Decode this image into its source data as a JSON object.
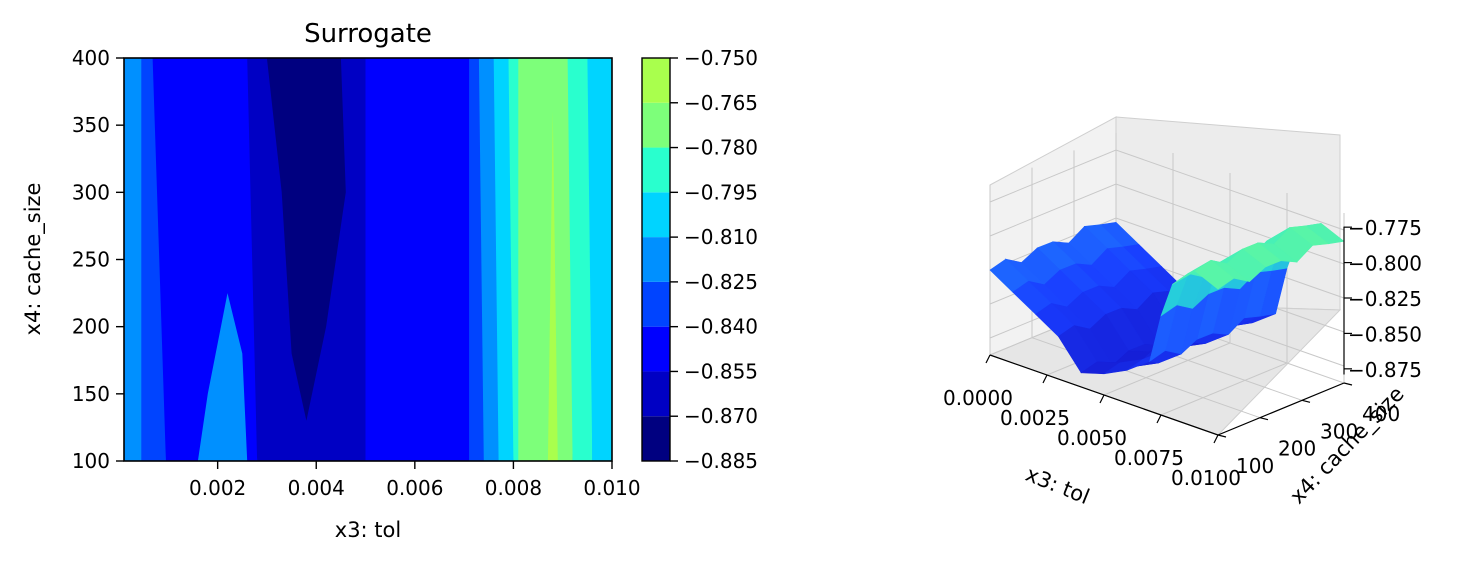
{
  "chart_data": [
    {
      "type": "contour",
      "title": "Surrogate",
      "xlabel": "x3: tol",
      "ylabel": "x4: cache_size",
      "xlim": [
        0.0001,
        0.01
      ],
      "ylim": [
        100,
        400
      ],
      "xticks": [
        "0.002",
        "0.004",
        "0.006",
        "0.008",
        "0.010"
      ],
      "xtick_values": [
        0.002,
        0.004,
        0.006,
        0.008,
        0.01
      ],
      "yticks": [
        "100",
        "150",
        "200",
        "250",
        "300",
        "350",
        "400"
      ],
      "ytick_values": [
        100,
        150,
        200,
        250,
        300,
        350,
        400
      ],
      "colorbar": {
        "levels": [
          -0.885,
          -0.87,
          -0.855,
          -0.84,
          -0.825,
          -0.81,
          -0.795,
          -0.78,
          -0.765,
          -0.75
        ],
        "tick_labels": [
          "−0.885",
          "−0.870",
          "−0.855",
          "−0.840",
          "−0.825",
          "−0.810",
          "−0.795",
          "−0.780",
          "−0.765",
          "−0.750"
        ],
        "colors": [
          "#000080",
          "#0000c4",
          "#0000ff",
          "#0044ff",
          "#0090ff",
          "#00d4ff",
          "#29ffce",
          "#7dff7a",
          "#a9ff4d"
        ]
      },
      "regions": [
        {
          "level": 4,
          "polygon": [
            [
              0.0001,
              100
            ],
            [
              0.0001,
              400
            ],
            [
              0.01,
              400
            ],
            [
              0.01,
              100
            ]
          ]
        },
        {
          "level": 3,
          "polygon": [
            [
              0.00045,
              400
            ],
            [
              0.00095,
              400
            ],
            [
              0.00095,
              100
            ],
            [
              0.00045,
              100
            ]
          ]
        },
        {
          "level": 2,
          "polygon": [
            [
              0.00068,
              400
            ],
            [
              0.0028,
              400
            ],
            [
              0.0028,
              100
            ],
            [
              0.0026,
              100
            ],
            [
              0.0025,
              180
            ],
            [
              0.0022,
              225
            ],
            [
              0.0018,
              150
            ],
            [
              0.0016,
              100
            ],
            [
              0.00095,
              100
            ]
          ]
        },
        {
          "level": 2,
          "polygon": [
            [
              0.0049,
              400
            ],
            [
              0.0072,
              400
            ],
            [
              0.0072,
              100
            ],
            [
              0.0049,
              100
            ]
          ]
        },
        {
          "level": 1,
          "polygon": [
            [
              0.0026,
              400
            ],
            [
              0.005,
              400
            ],
            [
              0.005,
              100
            ],
            [
              0.0028,
              100
            ]
          ]
        },
        {
          "level": 0,
          "polygon": [
            [
              0.003,
              400
            ],
            [
              0.0045,
              400
            ],
            [
              0.0046,
              300
            ],
            [
              0.0042,
              200
            ],
            [
              0.0038,
              130
            ],
            [
              0.0035,
              180
            ],
            [
              0.0033,
              300
            ]
          ]
        },
        {
          "level": 3,
          "polygon": [
            [
              0.0071,
              400
            ],
            [
              0.0075,
              400
            ],
            [
              0.0075,
              100
            ],
            [
              0.0071,
              100
            ]
          ]
        },
        {
          "level": 4,
          "polygon": [
            [
              0.0073,
              400
            ],
            [
              0.0078,
              400
            ],
            [
              0.0078,
              100
            ],
            [
              0.0074,
              100
            ]
          ]
        },
        {
          "level": 5,
          "polygon": [
            [
              0.0076,
              400
            ],
            [
              0.0081,
              400
            ],
            [
              0.008,
              100
            ],
            [
              0.0077,
              100
            ]
          ]
        },
        {
          "level": 6,
          "polygon": [
            [
              0.0079,
              400
            ],
            [
              0.0082,
              400
            ],
            [
              0.0082,
              100
            ],
            [
              0.008,
              100
            ]
          ]
        },
        {
          "level": 7,
          "polygon": [
            [
              0.0081,
              400
            ],
            [
              0.0092,
              400
            ],
            [
              0.0092,
              100
            ],
            [
              0.0081,
              100
            ]
          ]
        },
        {
          "level": 8,
          "polygon": [
            [
              0.0087,
              100
            ],
            [
              0.0088,
              360
            ],
            [
              0.0089,
              100
            ]
          ]
        },
        {
          "level": 6,
          "polygon": [
            [
              0.0091,
              400
            ],
            [
              0.0096,
              400
            ],
            [
              0.0096,
              100
            ],
            [
              0.0092,
              100
            ]
          ]
        },
        {
          "level": 5,
          "polygon": [
            [
              0.0095,
              400
            ],
            [
              0.01,
              400
            ],
            [
              0.01,
              100
            ],
            [
              0.0096,
              100
            ]
          ]
        }
      ]
    },
    {
      "type": "surface3d",
      "xlabel": "x3: tol",
      "ylabel": "x4: cache_size",
      "xticks": [
        "0.0000",
        "0.0025",
        "0.0050",
        "0.0075",
        "0.0100"
      ],
      "yticks": [
        "100",
        "200",
        "300",
        "400"
      ],
      "zticks": [
        "−0.775",
        "−0.800",
        "−0.825",
        "−0.850",
        "−0.875"
      ],
      "zlim": [
        -0.885,
        -0.765
      ],
      "profile": [
        [
          0.0,
          -0.825
        ],
        [
          0.001,
          -0.835
        ],
        [
          0.002,
          -0.845
        ],
        [
          0.003,
          -0.855
        ],
        [
          0.004,
          -0.875
        ],
        [
          0.005,
          -0.87
        ],
        [
          0.006,
          -0.862
        ],
        [
          0.007,
          -0.85
        ],
        [
          0.0075,
          -0.815
        ],
        [
          0.008,
          -0.79
        ],
        [
          0.009,
          -0.775
        ],
        [
          0.01,
          -0.782
        ]
      ]
    }
  ]
}
